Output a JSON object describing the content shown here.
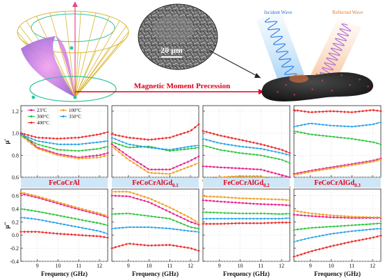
{
  "header": {
    "arrow_label": "Magnetic Moment Precession",
    "sem_scale": "20 μm",
    "incident_label": "Incident Wave",
    "reflected_label": "Reflected Wave"
  },
  "samples": [
    {
      "base": "FeCoCrAl",
      "sub": ""
    },
    {
      "base": "FeCoCrAlGd",
      "sub": "0.1"
    },
    {
      "base": "FeCoCrAlGd",
      "sub": "0.2"
    },
    {
      "base": "FeCoCrAlGd",
      "sub": "0.3"
    }
  ],
  "colors": {
    "s23": "#e8248f",
    "s100": "#f0a22a",
    "s300": "#22c332",
    "s350": "#1f9ee6",
    "s400": "#ee2b2b",
    "band": "#cfe6f6",
    "accent": "#e0001b"
  },
  "chart_data": {
    "type": "line",
    "x_label": "Frequency (GHz)",
    "x_ticks": [
      9,
      10,
      11,
      12
    ],
    "xlim": [
      8.2,
      12.4
    ],
    "series_names": [
      "23°C",
      "100°C",
      "300°C",
      "350°C",
      "400°C"
    ],
    "legend_placement": "top-left",
    "rows": [
      {
        "ylabel_base": "μ",
        "ylabel_sup": "′",
        "ylim": [
          0.6,
          1.25
        ],
        "y_ticks": [
          0.6,
          0.8,
          1.0,
          1.2
        ],
        "panels": [
          {
            "series": [
              {
                "name": "23°C",
                "x": [
                  8.2,
                  9,
                  10,
                  11,
                  12,
                  12.4
                ],
                "y": [
                  1.0,
                  0.87,
                  0.81,
                  0.78,
                  0.8,
                  0.82
                ]
              },
              {
                "name": "100°C",
                "x": [
                  8.2,
                  9,
                  10,
                  11,
                  12,
                  12.4
                ],
                "y": [
                  0.98,
                  0.86,
                  0.8,
                  0.77,
                  0.78,
                  0.8
                ]
              },
              {
                "name": "300°C",
                "x": [
                  8.2,
                  9,
                  10,
                  11,
                  12,
                  12.4
                ],
                "y": [
                  0.98,
                  0.9,
                  0.85,
                  0.84,
                  0.86,
                  0.88
                ]
              },
              {
                "name": "350°C",
                "x": [
                  8.2,
                  9,
                  10,
                  11,
                  12,
                  12.4
                ],
                "y": [
                  0.99,
                  0.93,
                  0.9,
                  0.9,
                  0.92,
                  0.93
                ]
              },
              {
                "name": "400°C",
                "x": [
                  8.2,
                  9,
                  10,
                  11,
                  12,
                  12.4
                ],
                "y": [
                  1.0,
                  0.96,
                  0.95,
                  0.96,
                  0.99,
                  1.01
                ]
              }
            ]
          },
          {
            "series": [
              {
                "name": "23°C",
                "x": [
                  8.2,
                  9,
                  10,
                  11,
                  12,
                  12.4
                ],
                "y": [
                  0.9,
                  0.79,
                  0.67,
                  0.67,
                  0.75,
                  0.79
                ]
              },
              {
                "name": "100°C",
                "x": [
                  8.2,
                  9,
                  10,
                  11,
                  12,
                  12.4
                ],
                "y": [
                  0.88,
                  0.76,
                  0.64,
                  0.63,
                  0.7,
                  0.73
                ]
              },
              {
                "name": "300°C",
                "x": [
                  8.2,
                  9,
                  10,
                  11,
                  12,
                  12.4
                ],
                "y": [
                  0.92,
                  0.87,
                  0.88,
                  0.84,
                  0.86,
                  0.87
                ]
              },
              {
                "name": "350°C",
                "x": [
                  8.2,
                  9,
                  10,
                  11,
                  12,
                  12.4
                ],
                "y": [
                  0.96,
                  0.9,
                  0.87,
                  0.85,
                  0.88,
                  0.89
                ]
              },
              {
                "name": "400°C",
                "x": [
                  8.2,
                  9,
                  10,
                  11,
                  12,
                  12.4
                ],
                "y": [
                  0.99,
                  0.96,
                  0.94,
                  0.96,
                  1.02,
                  1.08
                ]
              }
            ]
          },
          {
            "series": [
              {
                "name": "23°C",
                "x": [
                  8.2,
                  9,
                  10,
                  11,
                  12,
                  12.4
                ],
                "y": [
                  0.7,
                  0.69,
                  0.68,
                  0.67,
                  0.62,
                  0.6
                ]
              },
              {
                "name": "100°C",
                "x": [
                  8.2,
                  9,
                  10,
                  11,
                  12,
                  12.4
                ],
                "y": [
                  0.57,
                  0.6,
                  0.61,
                  0.61,
                  0.55,
                  0.51
                ]
              },
              {
                "name": "300°C",
                "x": [
                  8.2,
                  9,
                  10,
                  11,
                  12,
                  12.4
                ],
                "y": [
                  0.89,
                  0.85,
                  0.82,
                  0.8,
                  0.76,
                  0.73
                ]
              },
              {
                "name": "350°C",
                "x": [
                  8.2,
                  9,
                  10,
                  11,
                  12,
                  12.4
                ],
                "y": [
                  0.95,
                  0.91,
                  0.88,
                  0.86,
                  0.82,
                  0.8
                ]
              },
              {
                "name": "400°C",
                "x": [
                  8.2,
                  9,
                  10,
                  11,
                  12,
                  12.4
                ],
                "y": [
                  1.02,
                  0.98,
                  0.94,
                  0.9,
                  0.85,
                  0.82
                ]
              }
            ]
          },
          {
            "series": [
              {
                "name": "23°C",
                "x": [
                  8.2,
                  9,
                  10,
                  11,
                  12,
                  12.4
                ],
                "y": [
                  0.63,
                  0.66,
                  0.69,
                  0.72,
                  0.75,
                  0.77
                ]
              },
              {
                "name": "100°C",
                "x": [
                  8.2,
                  9,
                  10,
                  11,
                  12,
                  12.4
                ],
                "y": [
                  0.62,
                  0.65,
                  0.68,
                  0.71,
                  0.74,
                  0.76
                ]
              },
              {
                "name": "300°C",
                "x": [
                  8.2,
                  9,
                  10,
                  11,
                  12,
                  12.4
                ],
                "y": [
                  1.02,
                  0.99,
                  0.97,
                  0.95,
                  0.92,
                  0.9
                ]
              },
              {
                "name": "350°C",
                "x": [
                  8.2,
                  9,
                  10,
                  11,
                  12,
                  12.4
                ],
                "y": [
                  1.06,
                  1.09,
                  1.07,
                  1.06,
                  1.08,
                  1.1
                ]
              },
              {
                "name": "400°C",
                "x": [
                  8.2,
                  9,
                  10,
                  11,
                  12,
                  12.4
                ],
                "y": [
                  1.21,
                  1.19,
                  1.2,
                  1.19,
                  1.21,
                  1.2
                ]
              }
            ]
          }
        ]
      },
      {
        "ylabel_base": "μ",
        "ylabel_sup": "″",
        "ylim": [
          -0.4,
          0.7
        ],
        "y_ticks": [
          -0.4,
          -0.2,
          0.0,
          0.2,
          0.4,
          0.6
        ],
        "panels": [
          {
            "series": [
              {
                "name": "23°C",
                "x": [
                  8.2,
                  9,
                  10,
                  11,
                  12,
                  12.4
                ],
                "y": [
                  0.63,
                  0.57,
                  0.48,
                  0.39,
                  0.31,
                  0.27
                ]
              },
              {
                "name": "100°C",
                "x": [
                  8.2,
                  9,
                  10,
                  11,
                  12,
                  12.4
                ],
                "y": [
                  0.65,
                  0.59,
                  0.5,
                  0.41,
                  0.33,
                  0.29
                ]
              },
              {
                "name": "300°C",
                "x": [
                  8.2,
                  9,
                  10,
                  11,
                  12,
                  12.4
                ],
                "y": [
                  0.4,
                  0.36,
                  0.3,
                  0.24,
                  0.18,
                  0.15
                ]
              },
              {
                "name": "350°C",
                "x": [
                  8.2,
                  9,
                  10,
                  11,
                  12,
                  12.4
                ],
                "y": [
                  0.27,
                  0.24,
                  0.18,
                  0.12,
                  0.06,
                  0.02
                ]
              },
              {
                "name": "400°C",
                "x": [
                  8.2,
                  9,
                  10,
                  11,
                  12,
                  12.4
                ],
                "y": [
                  0.05,
                  0.05,
                  0.02,
                  0.0,
                  -0.02,
                  -0.04
                ]
              }
            ]
          },
          {
            "series": [
              {
                "name": "23°C",
                "x": [
                  8.2,
                  9,
                  10,
                  11,
                  12,
                  12.4
                ],
                "y": [
                  0.6,
                  0.59,
                  0.5,
                  0.35,
                  0.2,
                  0.16
                ]
              },
              {
                "name": "100°C",
                "x": [
                  8.2,
                  9,
                  10,
                  11,
                  12,
                  12.4
                ],
                "y": [
                  0.66,
                  0.66,
                  0.56,
                  0.42,
                  0.26,
                  0.18
                ]
              },
              {
                "name": "300°C",
                "x": [
                  8.2,
                  9,
                  10,
                  11,
                  12,
                  12.4
                ],
                "y": [
                  0.32,
                  0.33,
                  0.29,
                  0.25,
                  0.12,
                  0.1
                ]
              },
              {
                "name": "350°C",
                "x": [
                  8.2,
                  9,
                  10,
                  11,
                  12,
                  12.4
                ],
                "y": [
                  0.1,
                  0.12,
                  0.12,
                  0.1,
                  0.06,
                  0.05
                ]
              },
              {
                "name": "400°C",
                "x": [
                  8.2,
                  9,
                  10,
                  11,
                  12,
                  12.4
                ],
                "y": [
                  -0.2,
                  -0.13,
                  -0.16,
                  -0.15,
                  -0.2,
                  -0.24
                ]
              }
            ]
          },
          {
            "series": [
              {
                "name": "23°C",
                "x": [
                  8.2,
                  9,
                  10,
                  11,
                  12,
                  12.4
                ],
                "y": [
                  0.53,
                  0.51,
                  0.49,
                  0.47,
                  0.46,
                  0.45
                ]
              },
              {
                "name": "100°C",
                "x": [
                  8.2,
                  9,
                  10,
                  11,
                  12,
                  12.4
                ],
                "y": [
                  0.59,
                  0.58,
                  0.56,
                  0.55,
                  0.54,
                  0.53
                ]
              },
              {
                "name": "300°C",
                "x": [
                  8.2,
                  9,
                  10,
                  11,
                  12,
                  12.4
                ],
                "y": [
                  0.35,
                  0.34,
                  0.33,
                  0.33,
                  0.32,
                  0.33
                ]
              },
              {
                "name": "350°C",
                "x": [
                  8.2,
                  9,
                  10,
                  11,
                  12,
                  12.4
                ],
                "y": [
                  0.25,
                  0.25,
                  0.25,
                  0.25,
                  0.25,
                  0.26
                ]
              },
              {
                "name": "400°C",
                "x": [
                  8.2,
                  9,
                  10,
                  11,
                  12,
                  12.4
                ],
                "y": [
                  0.17,
                  0.17,
                  0.18,
                  0.18,
                  0.19,
                  0.19
                ]
              }
            ]
          },
          {
            "series": [
              {
                "name": "23°C",
                "x": [
                  8.2,
                  9,
                  10,
                  11,
                  12,
                  12.4
                ],
                "y": [
                  0.31,
                  0.29,
                  0.27,
                  0.26,
                  0.26,
                  0.26
                ]
              },
              {
                "name": "100°C",
                "x": [
                  8.2,
                  9,
                  10,
                  11,
                  12,
                  12.4
                ],
                "y": [
                  0.37,
                  0.33,
                  0.3,
                  0.28,
                  0.27,
                  0.27
                ]
              },
              {
                "name": "300°C",
                "x": [
                  8.2,
                  9,
                  10,
                  11,
                  12,
                  12.4
                ],
                "y": [
                  0.08,
                  0.11,
                  0.13,
                  0.15,
                  0.17,
                  0.18
                ]
              },
              {
                "name": "350°C",
                "x": [
                  8.2,
                  9,
                  10,
                  11,
                  12,
                  12.4
                ],
                "y": [
                  -0.1,
                  -0.04,
                  0.02,
                  0.06,
                  0.09,
                  0.1
                ]
              },
              {
                "name": "400°C",
                "x": [
                  8.2,
                  9,
                  10,
                  11,
                  12,
                  12.4
                ],
                "y": [
                  -0.33,
                  -0.25,
                  -0.17,
                  -0.1,
                  -0.04,
                  -0.01
                ]
              }
            ]
          }
        ]
      }
    ]
  }
}
